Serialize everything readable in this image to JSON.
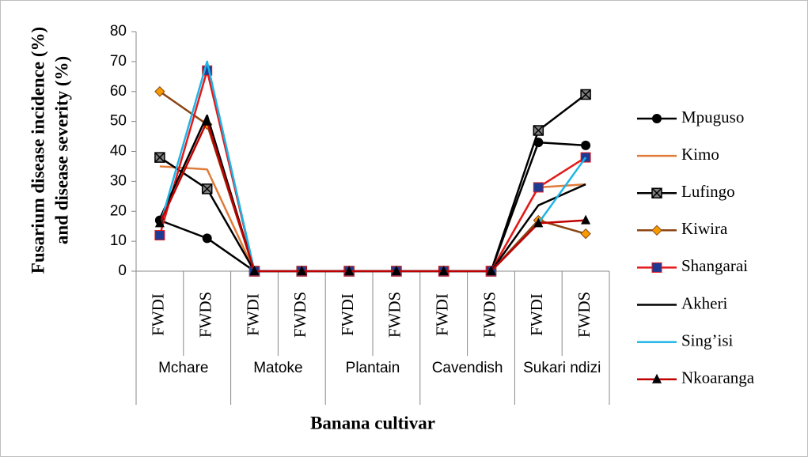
{
  "chart_data": {
    "type": "line",
    "y_axis_label": [
      "Fusarium disease incidence (%)",
      "and disease severity (%)"
    ],
    "x_axis_label": "Banana cultivar",
    "categories": [
      "FWDI",
      "FWDS",
      "FWDI",
      "FWDS",
      "FWDI",
      "FWDS",
      "FWDI",
      "FWDS",
      "FWDI",
      "FWDS"
    ],
    "category_groups": [
      "Mchare",
      "Matoke",
      "Plantain",
      "Cavendish",
      "Sukari ndizi"
    ],
    "ylim": [
      0,
      80
    ],
    "yticks": [
      0,
      10,
      20,
      30,
      40,
      50,
      60,
      70,
      80
    ],
    "grid": false,
    "legend": "right",
    "series": [
      {
        "name": "Mpuguso",
        "color": "#000000",
        "marker": "circle",
        "marker_color": "#000000",
        "values": [
          17,
          11,
          0,
          0,
          0,
          0,
          0,
          0,
          43,
          42
        ]
      },
      {
        "name": "Kimo",
        "color": "#e07b39",
        "marker": "none",
        "values": [
          35,
          34,
          0,
          0,
          0,
          0,
          0,
          0,
          28,
          29
        ]
      },
      {
        "name": "Lufingo",
        "color": "#000000",
        "marker": "xsquare",
        "marker_color": "#808080",
        "values": [
          38,
          27.5,
          0,
          0,
          0,
          0,
          0,
          0,
          47,
          59
        ]
      },
      {
        "name": "Kiwira",
        "color": "#8b4513",
        "marker": "diamond",
        "marker_color": "#f59b00",
        "values": [
          60,
          49,
          0,
          0,
          0,
          0,
          0,
          0,
          17,
          12.5
        ]
      },
      {
        "name": "Shangarai",
        "color": "#e31a1c",
        "marker": "square",
        "marker_color": "#1f3a93",
        "values": [
          12,
          67,
          0,
          0,
          0,
          0,
          0,
          0,
          28,
          38
        ]
      },
      {
        "name": "Akheri",
        "color": "#000000",
        "marker": "none",
        "values": [
          17.5,
          52,
          0,
          0,
          0,
          0,
          0,
          0,
          22,
          29
        ]
      },
      {
        "name": "Sing’isi",
        "color": "#1eb4e6",
        "marker": "none",
        "values": [
          15,
          70,
          0,
          0,
          0,
          0,
          0,
          0,
          16,
          38
        ]
      },
      {
        "name": "Nkoaranga",
        "color": "#c00000",
        "marker": "triangle",
        "marker_color": "#000000",
        "values": [
          16,
          50,
          0,
          0,
          0,
          0,
          0,
          0,
          16,
          17
        ]
      }
    ]
  }
}
